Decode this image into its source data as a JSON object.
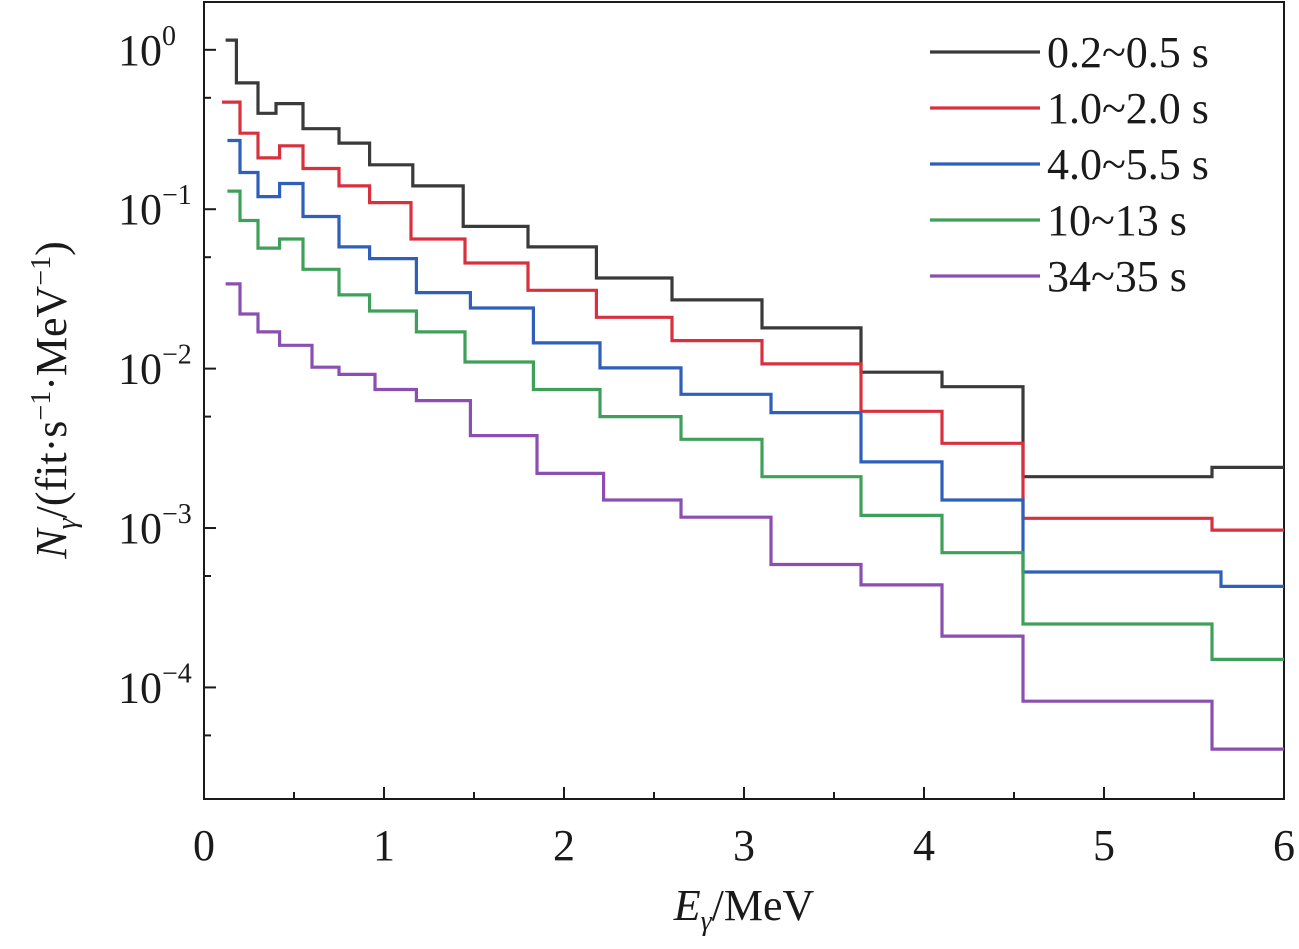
{
  "chart_data": {
    "type": "line",
    "step": true,
    "xlabel": {
      "main": "E",
      "sub": "γ",
      "rest": "/MeV"
    },
    "ylabel": {
      "main": "N",
      "sub": "γ",
      "rest": "/(fit·s",
      "sup1": "−1",
      "mid": "·MeV",
      "sup2": "−1",
      "end": ")"
    },
    "xlim": [
      0,
      6
    ],
    "ylim_log10": [
      -4.7,
      0.3
    ],
    "xticks": [
      0,
      1,
      2,
      3,
      4,
      5,
      6
    ],
    "xtick_labels": [
      "0",
      "1",
      "2",
      "3",
      "4",
      "5",
      "6"
    ],
    "yticks": [
      {
        "value": 1,
        "base": "10",
        "exp": "0"
      },
      {
        "value": 0.1,
        "base": "10",
        "exp": "−1"
      },
      {
        "value": 0.01,
        "base": "10",
        "exp": "−2"
      },
      {
        "value": 0.001,
        "base": "10",
        "exp": "−3"
      },
      {
        "value": 0.0001,
        "base": "10",
        "exp": "−4"
      }
    ],
    "legend_position": "top-right",
    "series": [
      {
        "name": "0.2~0.5 s",
        "color": "#3a3a3a",
        "edges": [
          0.12,
          0.18,
          0.3,
          0.4,
          0.55,
          0.75,
          0.92,
          1.16,
          1.44,
          1.8,
          2.18,
          2.6,
          3.1,
          3.65,
          4.1,
          4.55,
          5.6,
          6.0
        ],
        "values": [
          1.15,
          0.62,
          0.4,
          0.46,
          0.32,
          0.26,
          0.19,
          0.14,
          0.078,
          0.058,
          0.037,
          0.027,
          0.018,
          0.0095,
          0.0077,
          0.0021,
          0.0024
        ]
      },
      {
        "name": "1.0~2.0 s",
        "color": "#d9303e",
        "edges": [
          0.1,
          0.2,
          0.3,
          0.42,
          0.55,
          0.75,
          0.92,
          1.15,
          1.45,
          1.8,
          2.18,
          2.6,
          3.1,
          3.65,
          4.1,
          4.55,
          5.6,
          6.0
        ],
        "values": [
          0.47,
          0.3,
          0.21,
          0.25,
          0.18,
          0.14,
          0.11,
          0.065,
          0.046,
          0.031,
          0.021,
          0.015,
          0.0107,
          0.0054,
          0.0034,
          0.00115,
          0.00097
        ]
      },
      {
        "name": "4.0~5.5 s",
        "color": "#2e5fba",
        "edges": [
          0.13,
          0.2,
          0.3,
          0.42,
          0.55,
          0.75,
          0.92,
          1.18,
          1.48,
          1.83,
          2.2,
          2.65,
          3.15,
          3.65,
          4.1,
          4.55,
          5.65,
          6.0
        ],
        "values": [
          0.27,
          0.17,
          0.12,
          0.145,
          0.09,
          0.058,
          0.049,
          0.03,
          0.024,
          0.0145,
          0.0101,
          0.0069,
          0.0053,
          0.0026,
          0.0015,
          0.00053,
          0.00043
        ]
      },
      {
        "name": "10~13 s",
        "color": "#3fa05a",
        "edges": [
          0.13,
          0.2,
          0.3,
          0.42,
          0.55,
          0.75,
          0.92,
          1.18,
          1.45,
          1.83,
          2.2,
          2.65,
          3.1,
          3.65,
          4.1,
          4.55,
          5.6,
          6.0
        ],
        "values": [
          0.13,
          0.085,
          0.057,
          0.065,
          0.042,
          0.029,
          0.023,
          0.017,
          0.011,
          0.0074,
          0.005,
          0.0036,
          0.0021,
          0.0012,
          0.0007,
          0.00025,
          0.00015
        ]
      },
      {
        "name": "34~35 s",
        "color": "#8a4fb0",
        "edges": [
          0.12,
          0.2,
          0.3,
          0.42,
          0.6,
          0.75,
          0.95,
          1.18,
          1.48,
          1.85,
          2.22,
          2.65,
          3.15,
          3.65,
          4.1,
          4.55,
          5.6,
          6.0
        ],
        "values": [
          0.034,
          0.022,
          0.017,
          0.014,
          0.0102,
          0.0092,
          0.0074,
          0.0063,
          0.0038,
          0.0022,
          0.0015,
          0.00117,
          0.00059,
          0.00044,
          0.00021,
          8.2e-05,
          4.1e-05
        ]
      }
    ]
  }
}
